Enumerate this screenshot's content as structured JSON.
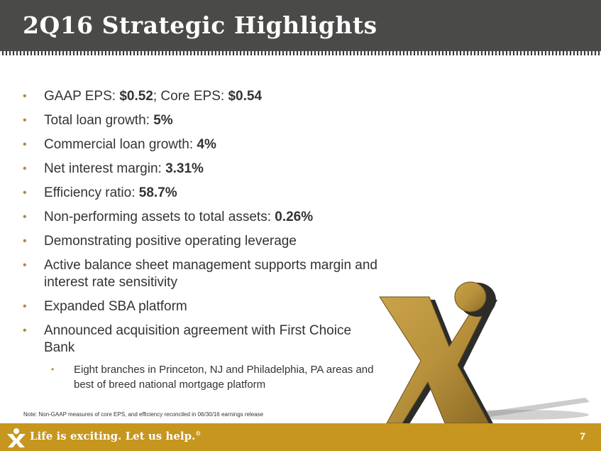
{
  "header": {
    "title": "2Q16 Strategic Highlights"
  },
  "bullets": [
    {
      "label": "GAAP EPS:",
      "value": "$0.52",
      "mid": "; Core EPS:",
      "value2": "$0.54"
    },
    {
      "label": "Total loan growth:",
      "value": "5%"
    },
    {
      "label": "Commercial loan growth:",
      "value": "4%"
    },
    {
      "label": "Net interest margin:",
      "value": "3.31%"
    },
    {
      "label": "Efficiency ratio:",
      "value": "58.7%"
    },
    {
      "label": "Non-performing assets to total assets:",
      "value": "0.26%"
    },
    {
      "label": "Demonstrating positive operating leverage"
    },
    {
      "label": "Active balance sheet management supports margin and interest rate sensitivity"
    },
    {
      "label": "Expanded SBA platform"
    },
    {
      "label": "Announced acquisition agreement with First Choice Bank"
    }
  ],
  "sub_bullets": [
    {
      "label": "Eight branches in Princeton, NJ and Philadelphia, PA areas and best of breed national mortgage platform"
    }
  ],
  "note": "Note: Non-GAAP measures of core EPS, and efficiency reconciled in 06/30/16 earnings release",
  "footer": {
    "tagline": "Life is exciting. Let us help.",
    "trademark": "®",
    "page_number": "7"
  },
  "colors": {
    "header_bg": "#4a4a48",
    "accent_gold": "#c6961e",
    "bullet_gold": "#b58a2a",
    "text": "#333333"
  },
  "icons": {
    "logo": "x-logo-icon",
    "footer_logo": "x-person-logo-icon"
  }
}
